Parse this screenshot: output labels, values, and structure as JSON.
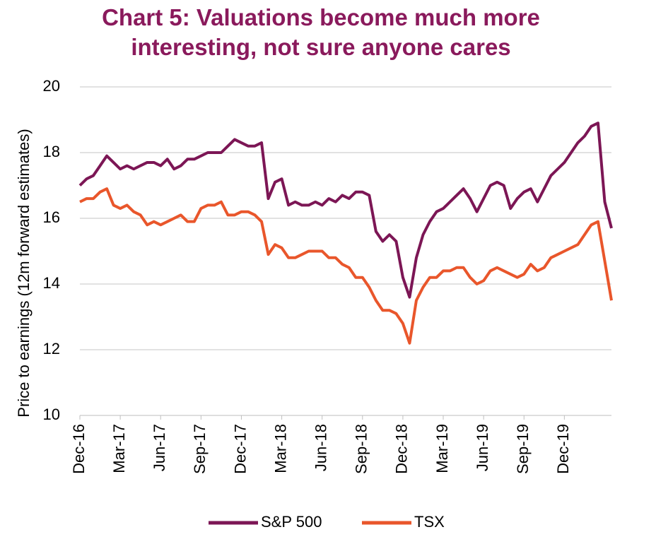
{
  "chart_data": {
    "type": "line",
    "title": "Chart 5: Valuations become much more interesting, not sure anyone cares",
    "y_label": "Price to earnings (12m forward estimates)",
    "categories": [
      "Dec-16",
      null,
      null,
      null,
      null,
      null,
      "Mar-17",
      null,
      null,
      null,
      null,
      null,
      "Jun-17",
      null,
      null,
      null,
      null,
      null,
      "Sep-17",
      null,
      null,
      null,
      null,
      null,
      "Dec-17",
      null,
      null,
      null,
      null,
      null,
      "Mar-18",
      null,
      null,
      null,
      null,
      null,
      "Jun-18",
      null,
      null,
      null,
      null,
      null,
      "Sep-18",
      null,
      null,
      null,
      null,
      null,
      "Dec-18",
      null,
      null,
      null,
      null,
      null,
      "Mar-19",
      null,
      null,
      null,
      null,
      null,
      "Jun-19",
      null,
      null,
      null,
      null,
      null,
      "Sep-19",
      null,
      null,
      null,
      null,
      null,
      "Dec-19",
      null,
      null,
      null,
      null,
      null,
      null,
      null
    ],
    "series": [
      {
        "name": "S&P 500",
        "color": "#7c1655",
        "values": [
          17.0,
          17.2,
          17.3,
          17.6,
          17.9,
          17.7,
          17.5,
          17.6,
          17.5,
          17.6,
          17.7,
          17.7,
          17.6,
          17.8,
          17.5,
          17.6,
          17.8,
          17.8,
          17.9,
          18.0,
          18.0,
          18.0,
          18.2,
          18.4,
          18.3,
          18.2,
          18.2,
          18.3,
          16.6,
          17.1,
          17.2,
          16.4,
          16.5,
          16.4,
          16.4,
          16.5,
          16.4,
          16.6,
          16.5,
          16.7,
          16.6,
          16.8,
          16.8,
          16.7,
          15.6,
          15.3,
          15.5,
          15.3,
          14.2,
          13.6,
          14.8,
          15.5,
          15.9,
          16.2,
          16.3,
          16.5,
          16.7,
          16.9,
          16.6,
          16.2,
          16.6,
          17.0,
          17.1,
          17.0,
          16.3,
          16.6,
          16.8,
          16.9,
          16.5,
          16.9,
          17.3,
          17.5,
          17.7,
          18.0,
          18.3,
          18.5,
          18.8,
          18.9,
          16.5,
          15.7
        ]
      },
      {
        "name": "TSX",
        "color": "#e9562b",
        "values": [
          16.5,
          16.6,
          16.6,
          16.8,
          16.9,
          16.4,
          16.3,
          16.4,
          16.2,
          16.1,
          15.8,
          15.9,
          15.8,
          15.9,
          16.0,
          16.1,
          15.9,
          15.9,
          16.3,
          16.4,
          16.4,
          16.5,
          16.1,
          16.1,
          16.2,
          16.2,
          16.1,
          15.9,
          14.9,
          15.2,
          15.1,
          14.8,
          14.8,
          14.9,
          15.0,
          15.0,
          15.0,
          14.8,
          14.8,
          14.6,
          14.5,
          14.2,
          14.2,
          13.9,
          13.5,
          13.2,
          13.2,
          13.1,
          12.8,
          12.2,
          13.5,
          13.9,
          14.2,
          14.2,
          14.4,
          14.4,
          14.5,
          14.5,
          14.2,
          14.0,
          14.1,
          14.4,
          14.5,
          14.4,
          14.3,
          14.2,
          14.3,
          14.6,
          14.4,
          14.5,
          14.8,
          14.9,
          15.0,
          15.1,
          15.2,
          15.5,
          15.8,
          15.9,
          14.7,
          13.5
        ]
      }
    ],
    "ylim": [
      10,
      20
    ],
    "yticks": [
      10,
      12,
      14,
      16,
      18,
      20
    ],
    "grid": true
  }
}
